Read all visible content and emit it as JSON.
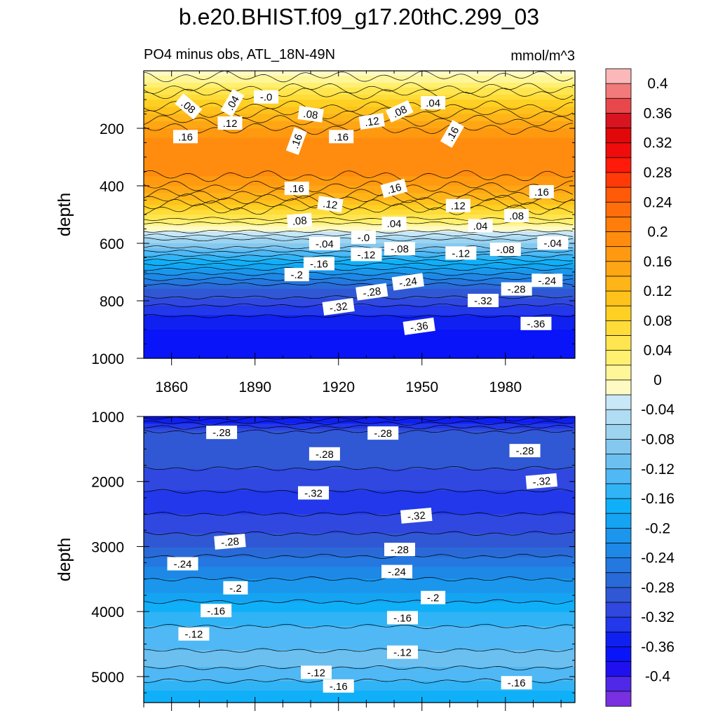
{
  "title": "b.e20.BHIST.f09_g17.20thC.299_03",
  "subtitle_left": "PO4 minus obs, ATL_18N-49N",
  "subtitle_right": "mmol/m^3",
  "chart_data": [
    {
      "type": "heatmap",
      "panel": "upper",
      "ylabel": "depth",
      "xlim": [
        1850,
        2005
      ],
      "ylim": [
        1000,
        0
      ],
      "x_ticks": [
        1860,
        1890,
        1920,
        1950,
        1980
      ],
      "y_ticks": [
        200,
        400,
        600,
        800,
        1000
      ],
      "depth_profile": [
        {
          "depth": 0,
          "value": -0.02
        },
        {
          "depth": 40,
          "value": 0.02
        },
        {
          "depth": 100,
          "value": 0.08
        },
        {
          "depth": 160,
          "value": 0.13
        },
        {
          "depth": 230,
          "value": 0.18
        },
        {
          "depth": 330,
          "value": 0.2
        },
        {
          "depth": 420,
          "value": 0.15
        },
        {
          "depth": 500,
          "value": 0.06
        },
        {
          "depth": 545,
          "value": 0.0
        },
        {
          "depth": 600,
          "value": -0.08
        },
        {
          "depth": 680,
          "value": -0.19
        },
        {
          "depth": 760,
          "value": -0.28
        },
        {
          "depth": 830,
          "value": -0.33
        },
        {
          "depth": 900,
          "value": -0.36
        },
        {
          "depth": 1000,
          "value": -0.37
        }
      ],
      "contour_labels": [
        {
          "text": ".08",
          "x": 1866,
          "y": 125,
          "angle": 40
        },
        {
          "text": ".04",
          "x": 1882,
          "y": 112,
          "angle": -60
        },
        {
          "text": "-.0",
          "x": 1894,
          "y": 92,
          "angle": 0
        },
        {
          "text": ".08",
          "x": 1910,
          "y": 152,
          "angle": 8
        },
        {
          "text": ".08",
          "x": 1942,
          "y": 142,
          "angle": -25
        },
        {
          "text": ".04",
          "x": 1954,
          "y": 112,
          "angle": 0
        },
        {
          "text": ".12",
          "x": 1881,
          "y": 183,
          "angle": 0
        },
        {
          "text": ".12",
          "x": 1932,
          "y": 177,
          "angle": -8
        },
        {
          "text": ".16",
          "x": 1865,
          "y": 230,
          "angle": 0
        },
        {
          "text": ".16",
          "x": 1905,
          "y": 245,
          "angle": -70
        },
        {
          "text": ".16",
          "x": 1921,
          "y": 230,
          "angle": 0
        },
        {
          "text": ".16",
          "x": 1961,
          "y": 220,
          "angle": -60
        },
        {
          "text": ".16",
          "x": 1905,
          "y": 410,
          "angle": 0
        },
        {
          "text": ".16",
          "x": 1940,
          "y": 410,
          "angle": -15
        },
        {
          "text": ".16",
          "x": 1993,
          "y": 422,
          "angle": 0
        },
        {
          "text": ".12",
          "x": 1917,
          "y": 465,
          "angle": 8
        },
        {
          "text": ".12",
          "x": 1963,
          "y": 470,
          "angle": 0
        },
        {
          "text": ".08",
          "x": 1906,
          "y": 522,
          "angle": -5
        },
        {
          "text": ".04",
          "x": 1940,
          "y": 532,
          "angle": 0
        },
        {
          "text": ".08",
          "x": 1984,
          "y": 505,
          "angle": 0
        },
        {
          "text": ".04",
          "x": 1971,
          "y": 540,
          "angle": 0
        },
        {
          "text": "-.04",
          "x": 1915,
          "y": 602,
          "angle": 0
        },
        {
          "text": "-.0",
          "x": 1929,
          "y": 580,
          "angle": 0
        },
        {
          "text": "-.12",
          "x": 1930,
          "y": 640,
          "angle": 0
        },
        {
          "text": "-.08",
          "x": 1942,
          "y": 620,
          "angle": 0
        },
        {
          "text": "-.12",
          "x": 1964,
          "y": 635,
          "angle": 0
        },
        {
          "text": "-.08",
          "x": 1980,
          "y": 622,
          "angle": 0
        },
        {
          "text": "-.04",
          "x": 1997,
          "y": 600,
          "angle": 0
        },
        {
          "text": "-.16",
          "x": 1913,
          "y": 672,
          "angle": 0
        },
        {
          "text": "-.2",
          "x": 1905,
          "y": 710,
          "angle": 0
        },
        {
          "text": "-.24",
          "x": 1945,
          "y": 735,
          "angle": -8
        },
        {
          "text": "-.24",
          "x": 1995,
          "y": 730,
          "angle": 0
        },
        {
          "text": "-.28",
          "x": 1932,
          "y": 770,
          "angle": -8
        },
        {
          "text": "-.28",
          "x": 1984,
          "y": 760,
          "angle": 0
        },
        {
          "text": "-.32",
          "x": 1920,
          "y": 822,
          "angle": -8
        },
        {
          "text": "-.32",
          "x": 1972,
          "y": 800,
          "angle": 0
        },
        {
          "text": "-.36",
          "x": 1949,
          "y": 890,
          "angle": -8
        },
        {
          "text": "-.36",
          "x": 1991,
          "y": 880,
          "angle": 0
        }
      ]
    },
    {
      "type": "heatmap",
      "panel": "lower",
      "ylabel": "depth",
      "xlim": [
        1850,
        2005
      ],
      "ylim": [
        5400,
        1000
      ],
      "y_ticks": [
        1000,
        2000,
        3000,
        4000,
        5000
      ],
      "depth_profile": [
        {
          "depth": 1000,
          "value": -0.37
        },
        {
          "depth": 1300,
          "value": -0.28
        },
        {
          "depth": 1600,
          "value": -0.29
        },
        {
          "depth": 2000,
          "value": -0.31
        },
        {
          "depth": 2300,
          "value": -0.33
        },
        {
          "depth": 2700,
          "value": -0.31
        },
        {
          "depth": 3000,
          "value": -0.28
        },
        {
          "depth": 3300,
          "value": -0.24
        },
        {
          "depth": 3700,
          "value": -0.2
        },
        {
          "depth": 4000,
          "value": -0.16
        },
        {
          "depth": 4400,
          "value": -0.125
        },
        {
          "depth": 4800,
          "value": -0.115
        },
        {
          "depth": 5000,
          "value": -0.13
        },
        {
          "depth": 5200,
          "value": -0.16
        },
        {
          "depth": 5400,
          "value": -0.17
        }
      ],
      "contour_labels": [
        {
          "text": "-.28",
          "x": 1878,
          "y": 1250,
          "angle": 0
        },
        {
          "text": "-.28",
          "x": 1936,
          "y": 1260,
          "angle": 0
        },
        {
          "text": "-.28",
          "x": 1915,
          "y": 1580,
          "angle": 0
        },
        {
          "text": "-.28",
          "x": 1987,
          "y": 1530,
          "angle": 0
        },
        {
          "text": "-.32",
          "x": 1911,
          "y": 2180,
          "angle": 0
        },
        {
          "text": "-.32",
          "x": 1993,
          "y": 2000,
          "angle": -5
        },
        {
          "text": "-.32",
          "x": 1948,
          "y": 2530,
          "angle": -5
        },
        {
          "text": "-.28",
          "x": 1881,
          "y": 2930,
          "angle": -5
        },
        {
          "text": "-.28",
          "x": 1942,
          "y": 3050,
          "angle": 0
        },
        {
          "text": "-.24",
          "x": 1864,
          "y": 3270,
          "angle": 0
        },
        {
          "text": "-.24",
          "x": 1941,
          "y": 3390,
          "angle": 0
        },
        {
          "text": "-.2",
          "x": 1883,
          "y": 3640,
          "angle": 0
        },
        {
          "text": "-.2",
          "x": 1954,
          "y": 3790,
          "angle": 0
        },
        {
          "text": "-.16",
          "x": 1876,
          "y": 3990,
          "angle": 0
        },
        {
          "text": "-.16",
          "x": 1943,
          "y": 4100,
          "angle": 0
        },
        {
          "text": "-.12",
          "x": 1868,
          "y": 4350,
          "angle": 0
        },
        {
          "text": "-.12",
          "x": 1943,
          "y": 4630,
          "angle": 0
        },
        {
          "text": "-.12",
          "x": 1912,
          "y": 4940,
          "angle": 0
        },
        {
          "text": "-.16",
          "x": 1920,
          "y": 5150,
          "angle": 0
        },
        {
          "text": "-.16",
          "x": 1984,
          "y": 5100,
          "angle": 0
        }
      ]
    }
  ],
  "colorbar": {
    "labels": [
      "0.4",
      "0.36",
      "0.32",
      "0.28",
      "0.24",
      "0.2",
      "0.16",
      "0.12",
      "0.08",
      "0.04",
      "0",
      "-0.04",
      "-0.08",
      "-0.12",
      "-0.16",
      "-0.2",
      "-0.24",
      "-0.28",
      "-0.32",
      "-0.36",
      "-0.4"
    ],
    "colors": [
      "#fbb8b8",
      "#f27a7a",
      "#e8484b",
      "#d81420",
      "#e00808",
      "#f00c0c",
      "#ff1a0a",
      "#ff3a08",
      "#ff5a08",
      "#ff6e0a",
      "#ff7d0a",
      "#ff8c0e",
      "#ff9a10",
      "#ffa614",
      "#ffb418",
      "#ffc21c",
      "#ffd024",
      "#ffdc38",
      "#ffe650",
      "#fff070",
      "#fff69a",
      "#fffac4",
      "#c8e8f8",
      "#b0dcf4",
      "#9cd4f0",
      "#84c8f0",
      "#6cc0f0",
      "#50b8f4",
      "#30b4f6",
      "#10b0f8",
      "#14a4f2",
      "#1a96ec",
      "#1e88e6",
      "#2478e0",
      "#2a6ad8",
      "#3058d4",
      "#3048e0",
      "#2238ea",
      "#1020f0",
      "#0a14f8",
      "#2010f0",
      "#5028e8",
      "#7830e0"
    ],
    "label_colors": [
      "#fbb8b8",
      "#f27a7a",
      "#e8484b",
      "#d81420",
      "#e00808",
      "#f00c0c",
      "#ff1a0a",
      "#ff3a08",
      "#ff5a08",
      "#ff6e0a",
      "#ff7d0a",
      "#ff8c0e",
      "#ff9a10",
      "#ffa614",
      "#ffb418",
      "#ffc21c",
      "#ffd024",
      "#ffdc38",
      "#ffe650",
      "#fff070",
      "#fff69a",
      "#fffac4",
      "#c8e8f8",
      "#b0dcf4",
      "#9cd4f0",
      "#84c8f0",
      "#6cc0f0",
      "#50b8f4",
      "#30b4f6",
      "#10b0f8",
      "#14a4f2",
      "#1a96ec",
      "#1e88e6",
      "#2478e0",
      "#2a6ad8",
      "#3058d4",
      "#3048e0",
      "#2238ea",
      "#1020f0",
      "#0a14f8",
      "#2010f0",
      "#5028e8",
      "#7830e0"
    ]
  }
}
